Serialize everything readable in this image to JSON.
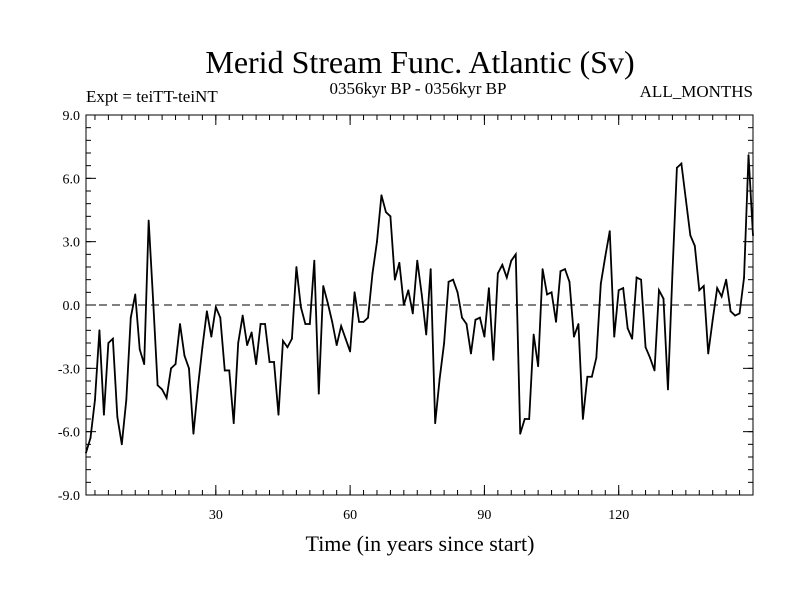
{
  "chart_data": {
    "type": "line",
    "title": "Merid Stream Func. Atlantic (Sv)",
    "subtitle_left": "Expt = teiTT-teiNT",
    "subtitle_center": "0356kyr BP - 0356kyr BP",
    "subtitle_right": "ALL_MONTHS",
    "xlabel": "Time (in years since start)",
    "ylabel": "",
    "xlim": [
      1,
      150
    ],
    "ylim": [
      -9.0,
      9.0
    ],
    "x_ticks": [
      30,
      60,
      90,
      120
    ],
    "x_tick_labels": [
      "30",
      "60",
      "90",
      "120"
    ],
    "y_ticks": [
      -9.0,
      -6.0,
      -3.0,
      0.0,
      3.0,
      6.0,
      9.0
    ],
    "y_tick_labels": [
      "-9.0",
      "-6.0",
      "-3.0",
      "0.0",
      "3.0",
      "6.0",
      "9.0"
    ],
    "zero_line": true,
    "series": [
      {
        "name": "Merid Stream Func. Atlantic",
        "x_start": 1,
        "x_step": 1,
        "values": [
          -7.0,
          -6.3,
          -4.5,
          -1.2,
          -5.2,
          -1.8,
          -1.6,
          -5.3,
          -6.6,
          -4.5,
          -0.6,
          0.5,
          -2.1,
          -2.8,
          4.0,
          0.2,
          -3.8,
          -4.0,
          -4.4,
          -3.0,
          -2.8,
          -0.9,
          -2.4,
          -3.0,
          -6.1,
          -3.9,
          -2.0,
          -0.3,
          -1.5,
          -0.1,
          -0.6,
          -3.1,
          -3.1,
          -5.6,
          -1.8,
          -0.5,
          -1.9,
          -1.3,
          -2.8,
          -0.9,
          -0.9,
          -2.7,
          -2.7,
          -5.2,
          -1.7,
          -2.0,
          -1.6,
          1.8,
          -0.1,
          -0.9,
          -0.9,
          2.1,
          -4.2,
          0.9,
          0.1,
          -0.8,
          -1.9,
          -1.0,
          -1.6,
          -2.2,
          0.6,
          -0.8,
          -0.8,
          -0.6,
          1.5,
          3.0,
          5.2,
          4.4,
          4.2,
          1.2,
          2.0,
          0.0,
          0.7,
          -0.4,
          2.1,
          0.5,
          -1.4,
          1.7,
          -5.6,
          -3.5,
          -1.8,
          1.1,
          1.2,
          0.6,
          -0.6,
          -0.9,
          -2.3,
          -0.7,
          -0.6,
          -1.5,
          0.8,
          -2.6,
          1.5,
          1.9,
          1.3,
          2.1,
          2.4,
          -6.1,
          -5.4,
          -5.4,
          -1.4,
          -2.9,
          1.7,
          0.5,
          0.6,
          -0.8,
          1.6,
          1.7,
          1.1,
          -1.5,
          -0.9,
          -5.4,
          -3.4,
          -3.4,
          -2.5,
          1.0,
          2.3,
          3.5,
          -1.5,
          0.7,
          0.8,
          -1.1,
          -1.6,
          1.3,
          1.2,
          -2.0,
          -2.5,
          -3.1,
          0.7,
          0.3,
          -4.0,
          1.5,
          6.5,
          6.7,
          5.0,
          3.3,
          2.8,
          0.7,
          0.9,
          -2.3,
          -0.7,
          0.8,
          0.4,
          1.2,
          -0.3,
          -0.5,
          -0.4,
          1.3,
          7.1,
          3.3
        ]
      }
    ]
  }
}
